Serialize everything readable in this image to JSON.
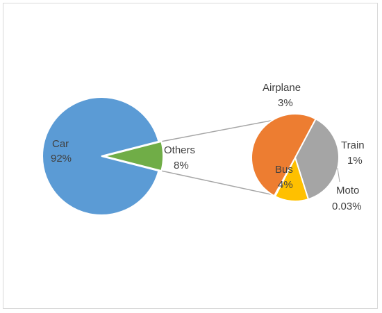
{
  "chart_data": {
    "type": "pie",
    "subtype": "pie-of-pie",
    "title": "",
    "legend": "none",
    "colors": {
      "Car": "#5b9bd5",
      "Others": "#70ad47",
      "Airplane": "#a5a5a5",
      "Train": "#ffc000",
      "Bus": "#ed7d31",
      "Moto": "#4472c4",
      "connector": "#a6a6a6",
      "text": "#404040",
      "border": "#d9d9d9"
    },
    "main_pie": {
      "categories": [
        "Car",
        "Others"
      ],
      "values": [
        92,
        8
      ],
      "labels": [
        {
          "name": "Car",
          "pct": "92%"
        },
        {
          "name": "Others",
          "pct": "8%"
        }
      ]
    },
    "secondary_pie": {
      "categories": [
        "Airplane",
        "Train",
        "Moto",
        "Bus"
      ],
      "values": [
        3,
        1,
        0.03,
        4
      ],
      "labels": [
        {
          "name": "Airplane",
          "pct": "3%"
        },
        {
          "name": "Train",
          "pct": "1%"
        },
        {
          "name": "Moto",
          "pct": "0.03%"
        },
        {
          "name": "Bus",
          "pct": "4%"
        }
      ]
    }
  }
}
